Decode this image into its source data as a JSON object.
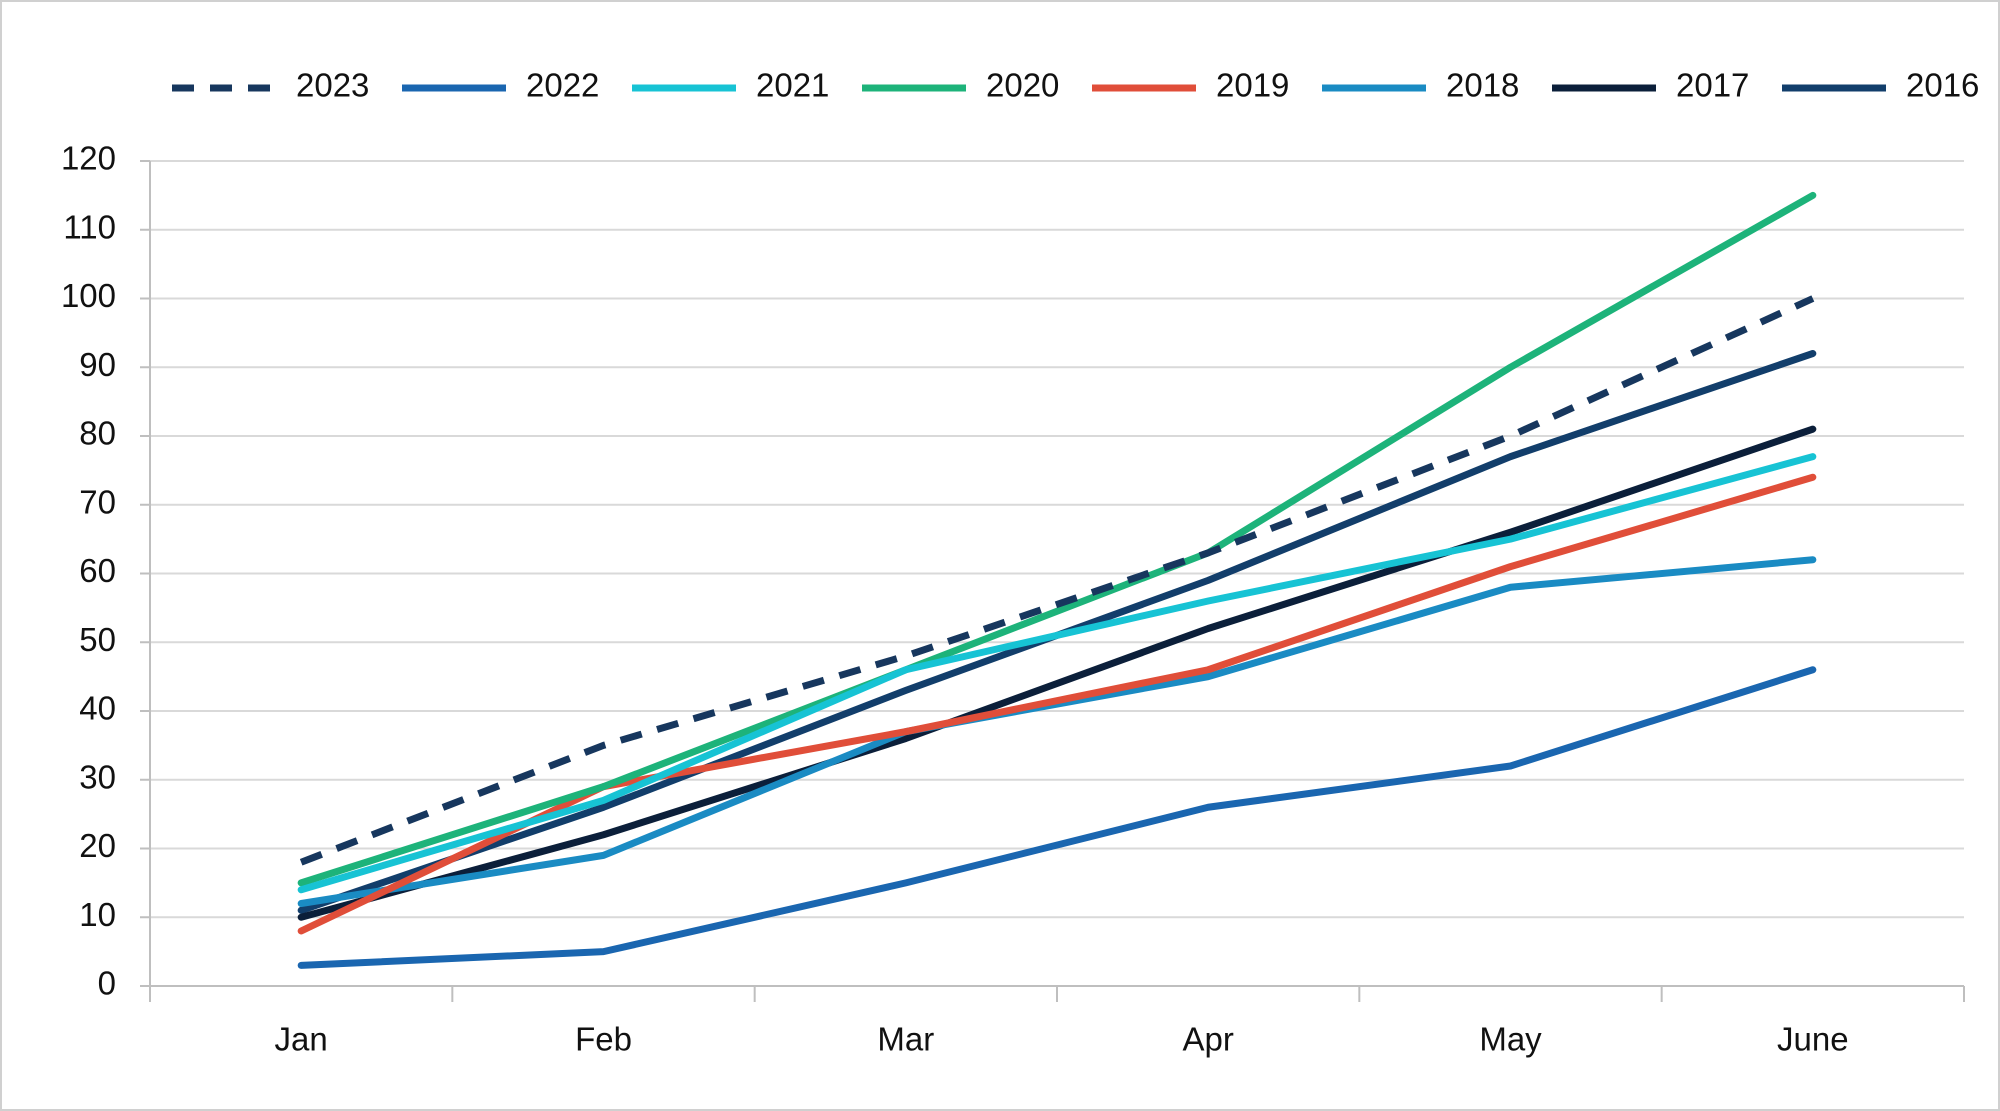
{
  "chart_data": {
    "type": "line",
    "categories": [
      "Jan",
      "Feb",
      "Mar",
      "Apr",
      "May",
      "June"
    ],
    "series": [
      {
        "name": "2023",
        "color": "#17375e",
        "dashed": true,
        "values": [
          18,
          35,
          48,
          63,
          80,
          100
        ]
      },
      {
        "name": "2022",
        "color": "#1a66b0",
        "values": [
          3,
          5,
          15,
          26,
          32,
          46
        ]
      },
      {
        "name": "2021",
        "color": "#17c3d4",
        "values": [
          14,
          27,
          46,
          56,
          65,
          77
        ]
      },
      {
        "name": "2020",
        "color": "#1db37a",
        "values": [
          15,
          29,
          46,
          63,
          90,
          115
        ]
      },
      {
        "name": "2019",
        "color": "#e04e39",
        "values": [
          8,
          29,
          37,
          46,
          61,
          74
        ]
      },
      {
        "name": "2018",
        "color": "#1a8bc3",
        "values": [
          12,
          19,
          37,
          45,
          58,
          62
        ]
      },
      {
        "name": "2017",
        "color": "#0b1f3a",
        "values": [
          10,
          22,
          36,
          52,
          66,
          81
        ]
      },
      {
        "name": "2016",
        "color": "#123e6b",
        "values": [
          11,
          26,
          43,
          59,
          77,
          92
        ]
      }
    ],
    "ylim": [
      0,
      120
    ],
    "yticks": [
      0,
      10,
      20,
      30,
      40,
      50,
      60,
      70,
      80,
      90,
      100,
      110,
      120
    ],
    "grid": true,
    "legend": "top"
  }
}
